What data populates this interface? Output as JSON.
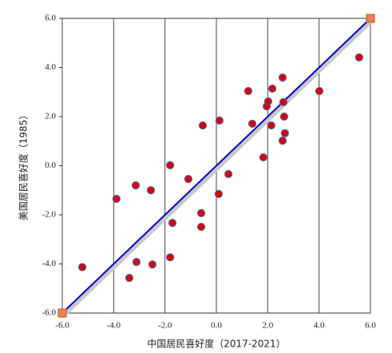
{
  "chart_data": {
    "type": "scatter",
    "x_label": "中国居民喜好度（2017-2021）",
    "y_label": "美国居民喜好度（1985）",
    "xlim": [
      -6,
      6
    ],
    "ylim": [
      -6,
      6
    ],
    "xticks": [
      {
        "value": -6,
        "label": "-6.0"
      },
      {
        "value": -4,
        "label": "-4.0"
      },
      {
        "value": -2,
        "label": "-2.0"
      },
      {
        "value": 0,
        "label": "0.0"
      },
      {
        "value": 2,
        "label": "2.0"
      },
      {
        "value": 4,
        "label": "4.0"
      },
      {
        "value": 6,
        "label": "6.0"
      }
    ],
    "yticks": [
      {
        "value": -6,
        "label": "-6.0"
      },
      {
        "value": -4,
        "label": "-4.0"
      },
      {
        "value": -2,
        "label": "-2.0"
      },
      {
        "value": 0,
        "label": "0.0"
      },
      {
        "value": 2,
        "label": "2.0"
      },
      {
        "value": 4,
        "label": "4.0"
      },
      {
        "value": 6,
        "label": "6.0"
      }
    ],
    "x_grid": true,
    "series": [
      {
        "color": "#dd0000",
        "marker": "circle",
        "x": [
          -5.22,
          -3.89,
          -3.14,
          -2.55,
          -3.39,
          -3.11,
          -2.49,
          -1.8,
          -1.71,
          -1.8,
          -1.09,
          -0.53,
          -0.59,
          -0.59,
          0.12,
          0.09,
          0.47,
          1.24,
          1.4,
          1.83,
          1.96,
          2.02,
          2.18,
          2.14,
          2.58,
          2.61,
          2.64,
          2.67,
          2.58,
          4.01,
          5.56
        ],
        "y": [
          -4.13,
          -1.35,
          -0.8,
          -1.0,
          -4.57,
          -3.92,
          -4.02,
          0.02,
          -2.33,
          -3.73,
          -0.54,
          1.64,
          -1.93,
          -2.49,
          1.84,
          -1.15,
          -0.34,
          3.04,
          1.71,
          0.34,
          2.42,
          2.62,
          3.14,
          1.64,
          3.59,
          2.59,
          2.0,
          1.32,
          1.02,
          3.04,
          4.41
        ]
      },
      {
        "color": "#f08050",
        "marker": "square",
        "x": [
          -6,
          6
        ],
        "y": [
          -6,
          6
        ]
      }
    ],
    "line": {
      "color": "#0000cc",
      "x": [
        -6,
        6
      ],
      "y": [
        -6,
        6
      ]
    }
  }
}
